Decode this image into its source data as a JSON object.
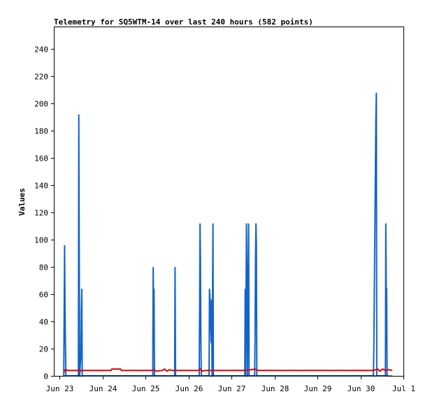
{
  "chart_data": {
    "type": "line",
    "title": "Telemetry for SQ5WTM-14 over last 240 hours (582 points)",
    "xlabel": "",
    "ylabel": "Values",
    "x_ticks": [
      "Jun 23",
      "Jun 24",
      "Jun 25",
      "Jun 26",
      "Jun 27",
      "Jun 28",
      "Jun 29",
      "Jun 30",
      "Jul 1"
    ],
    "y_ticks": [
      0,
      20,
      40,
      60,
      80,
      100,
      120,
      140,
      160,
      180,
      200,
      220,
      240
    ],
    "xlim": [
      0,
      8
    ],
    "ylim": [
      0,
      256
    ],
    "grid": false,
    "legend": "none",
    "series": [
      {
        "color": "#1464c8",
        "points": [
          [
            0.1,
            0
          ],
          [
            0.11,
            48
          ],
          [
            0.12,
            96
          ],
          [
            0.13,
            48
          ],
          [
            0.14,
            24
          ],
          [
            0.15,
            0
          ],
          [
            0.44,
            0
          ],
          [
            0.45,
            192
          ],
          [
            0.46,
            96
          ],
          [
            0.47,
            0
          ],
          [
            0.5,
            16
          ],
          [
            0.51,
            48
          ],
          [
            0.52,
            64
          ],
          [
            0.53,
            0
          ],
          [
            2.17,
            0
          ],
          [
            2.18,
            80
          ],
          [
            2.19,
            40
          ],
          [
            2.2,
            64
          ],
          [
            2.21,
            0
          ],
          [
            2.68,
            0
          ],
          [
            2.69,
            80
          ],
          [
            2.7,
            0
          ],
          [
            3.25,
            0
          ],
          [
            3.26,
            48
          ],
          [
            3.27,
            112
          ],
          [
            3.28,
            84
          ],
          [
            3.29,
            28
          ],
          [
            3.3,
            0
          ],
          [
            3.48,
            0
          ],
          [
            3.49,
            64
          ],
          [
            3.5,
            58
          ],
          [
            3.51,
            48
          ],
          [
            3.52,
            32
          ],
          [
            3.53,
            24
          ],
          [
            3.54,
            56
          ],
          [
            3.55,
            0
          ],
          [
            3.57,
            112
          ],
          [
            3.58,
            0
          ],
          [
            4.31,
            0
          ],
          [
            4.32,
            64
          ],
          [
            4.33,
            0
          ],
          [
            4.35,
            112
          ],
          [
            4.36,
            80
          ],
          [
            4.37,
            0
          ],
          [
            4.4,
            112
          ],
          [
            4.41,
            0
          ],
          [
            4.54,
            0
          ],
          [
            4.55,
            28
          ],
          [
            4.56,
            84
          ],
          [
            4.57,
            112
          ],
          [
            4.58,
            96
          ],
          [
            4.59,
            0
          ],
          [
            7.3,
            0
          ],
          [
            7.31,
            16
          ],
          [
            7.32,
            52
          ],
          [
            7.33,
            86
          ],
          [
            7.34,
            120
          ],
          [
            7.35,
            156
          ],
          [
            7.36,
            190
          ],
          [
            7.37,
            208
          ],
          [
            7.38,
            0
          ],
          [
            7.58,
            0
          ],
          [
            7.59,
            112
          ],
          [
            7.6,
            64
          ],
          [
            7.61,
            64
          ],
          [
            7.62,
            0
          ]
        ]
      },
      {
        "color": "#e00000",
        "points": [
          [
            0.1,
            4.5
          ],
          [
            0.12,
            3.5
          ],
          [
            0.14,
            4.5
          ],
          [
            0.2,
            4
          ],
          [
            0.42,
            4
          ],
          [
            0.45,
            4.5
          ],
          [
            0.48,
            3.5
          ],
          [
            0.52,
            4
          ],
          [
            1.2,
            4
          ],
          [
            1.22,
            5
          ],
          [
            1.42,
            5
          ],
          [
            1.44,
            4
          ],
          [
            2.15,
            4
          ],
          [
            2.2,
            4.5
          ],
          [
            2.25,
            3.5
          ],
          [
            2.4,
            4
          ],
          [
            2.44,
            5
          ],
          [
            2.5,
            3.5
          ],
          [
            2.56,
            4.5
          ],
          [
            2.62,
            4
          ],
          [
            3.25,
            4
          ],
          [
            3.28,
            5
          ],
          [
            3.32,
            3.5
          ],
          [
            3.4,
            4
          ],
          [
            4.3,
            4
          ],
          [
            4.45,
            4.5
          ],
          [
            4.55,
            5
          ],
          [
            4.6,
            4
          ],
          [
            7.3,
            4
          ],
          [
            7.4,
            5
          ],
          [
            7.45,
            3.5
          ],
          [
            7.52,
            5
          ],
          [
            7.58,
            4
          ],
          [
            7.65,
            4.5
          ],
          [
            7.74,
            4
          ]
        ]
      },
      {
        "color": "#000000",
        "points": [
          [
            0.1,
            0
          ],
          [
            7.74,
            0
          ]
        ]
      }
    ]
  }
}
